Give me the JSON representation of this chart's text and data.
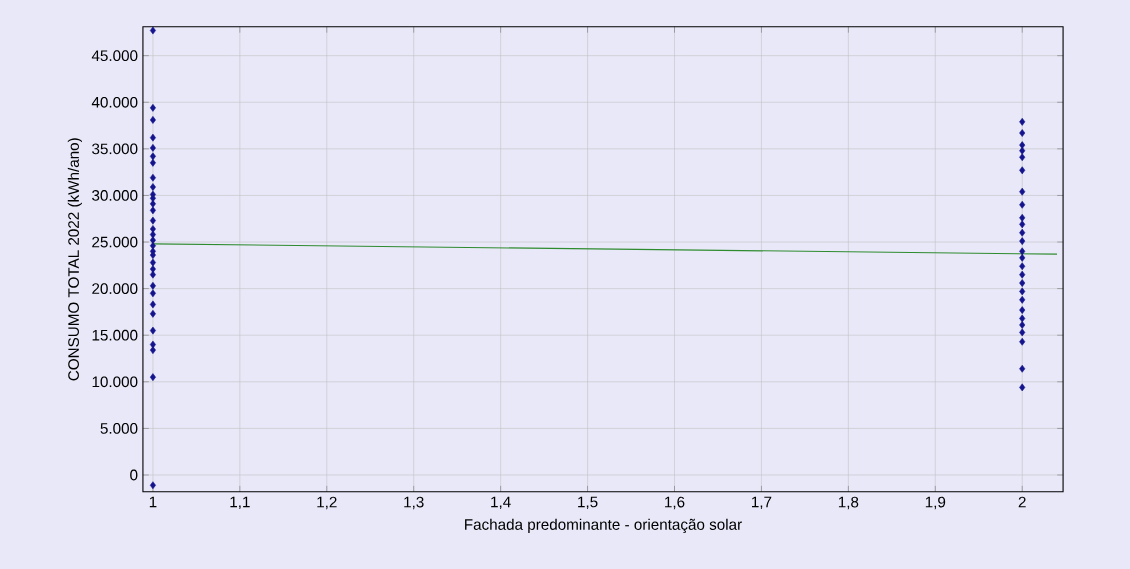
{
  "chart_data": {
    "type": "scatter",
    "xlabel": "Fachada predominante - orientação solar",
    "ylabel": "CONSUMO TOTAL 2022 (kWh/ano)",
    "xlim": [
      0.9885,
      2.047
    ],
    "ylim": [
      -1800,
      48100
    ],
    "xticks": [
      1,
      {
        "value": 1.1,
        "label": "1,1"
      },
      {
        "value": 1.2,
        "label": "1,2"
      },
      {
        "value": 1.3,
        "label": "1,3"
      },
      {
        "value": 1.4,
        "label": "1,4"
      },
      {
        "value": 1.5,
        "label": "1,5"
      },
      {
        "value": 1.6,
        "label": "1,6"
      },
      {
        "value": 1.7,
        "label": "1,7"
      },
      {
        "value": 1.8,
        "label": "1,8"
      },
      {
        "value": 1.9,
        "label": "1,9"
      },
      2
    ],
    "yticks": [
      0,
      {
        "value": 5000,
        "label": "5.000"
      },
      {
        "value": 10000,
        "label": "10.000"
      },
      {
        "value": 15000,
        "label": "15.000"
      },
      {
        "value": 20000,
        "label": "20.000"
      },
      {
        "value": 25000,
        "label": "25.000"
      },
      {
        "value": 30000,
        "label": "30.000"
      },
      {
        "value": 35000,
        "label": "35.000"
      },
      {
        "value": 40000,
        "label": "40.000"
      },
      {
        "value": 45000,
        "label": "45.000"
      }
    ],
    "grid": true,
    "marker": "diamond",
    "series": [
      {
        "color": "#14148c",
        "x": [
          1,
          1,
          1,
          1,
          1,
          1,
          1,
          1,
          1,
          1,
          1,
          1,
          1,
          1,
          1,
          1,
          1,
          1,
          1,
          1,
          1,
          1,
          1,
          1,
          1,
          1,
          1,
          1,
          1,
          1,
          1,
          1
        ],
        "values": [
          47700,
          39400,
          38100,
          36200,
          35100,
          34200,
          33500,
          31900,
          30900,
          30100,
          29700,
          29100,
          28400,
          27300,
          26400,
          25800,
          25200,
          24600,
          24000,
          23600,
          22800,
          22100,
          21500,
          20300,
          19500,
          18300,
          17300,
          15500,
          14000,
          13400,
          10500,
          -1100
        ]
      },
      {
        "color": "#14148c",
        "x": [
          2,
          2,
          2,
          2,
          2,
          2,
          2,
          2,
          2,
          2,
          2,
          2,
          2,
          2,
          2,
          2,
          2,
          2,
          2,
          2,
          2,
          2,
          2,
          2,
          2,
          2
        ],
        "values": [
          37900,
          36700,
          35400,
          34800,
          34100,
          32700,
          30400,
          29000,
          27600,
          26900,
          26000,
          25100,
          24000,
          23300,
          22400,
          21500,
          20600,
          19700,
          18800,
          17700,
          16800,
          16100,
          15300,
          14300,
          11400,
          9400
        ]
      },
      {
        "type": "line",
        "color": "#2e8b2e",
        "marker": "none",
        "x": [
          1,
          2.04
        ],
        "values": [
          24800,
          23700
        ]
      }
    ]
  }
}
